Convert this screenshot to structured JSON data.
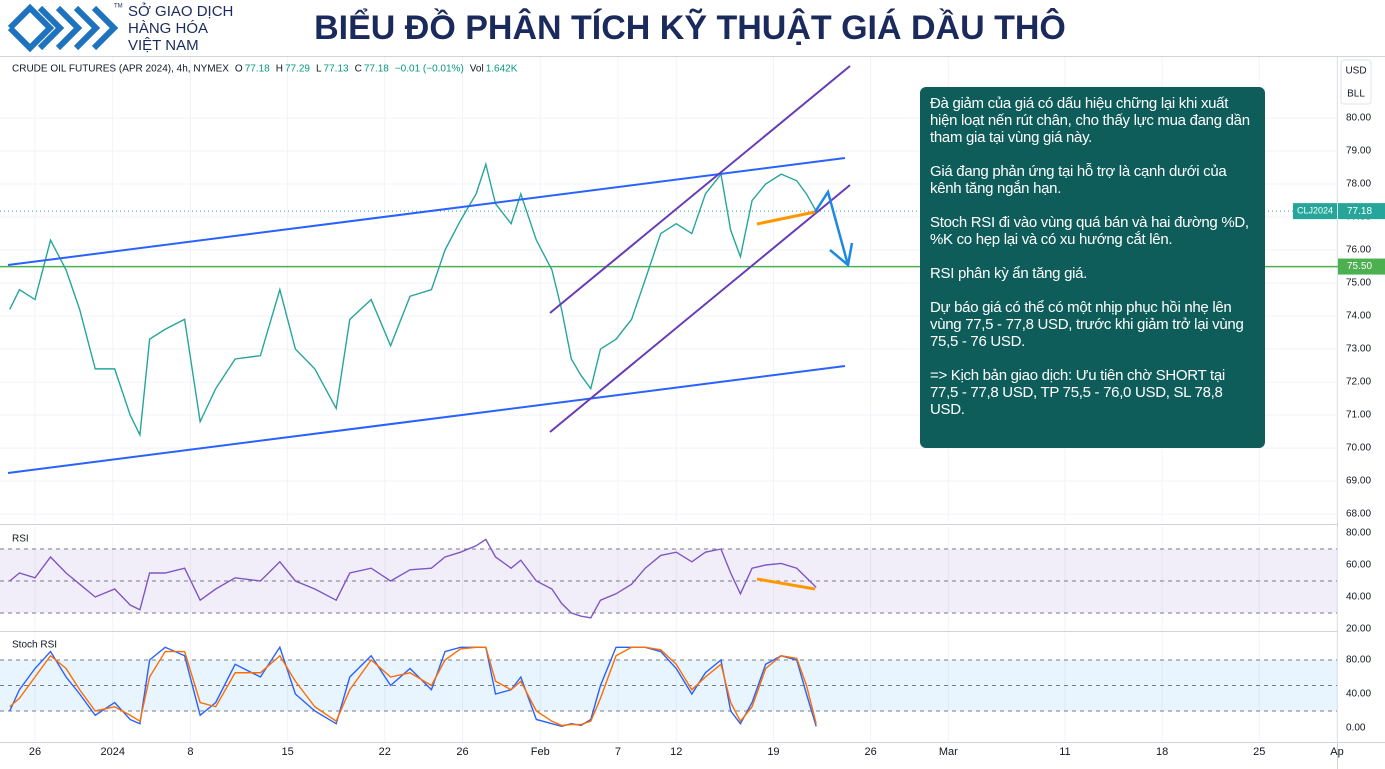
{
  "header": {
    "logo": {
      "lines": [
        "SỞ GIAO DỊCH",
        "HÀNG HÓA",
        "VIỆT NAM"
      ],
      "trademark": "TM"
    },
    "title": "BIỂU ĐỒ PHÂN TÍCH KỸ THUẬT GIÁ DẦU THÔ"
  },
  "chart_data": [
    {
      "type": "line",
      "title": "CRUDE OIL FUTURES (APR 2024), 4h, NYMEX",
      "quote": [
        {
          "name": "O",
          "value": 77.18
        },
        {
          "name": "H",
          "value": 77.29
        },
        {
          "name": "L",
          "value": 77.13
        },
        {
          "name": "C",
          "value": 77.18
        }
      ],
      "change": "−0.01 (−0.01%)",
      "volume": {
        "name": "Vol",
        "label": "1.642K"
      },
      "currency": "USD",
      "unit": "BLL",
      "x": [
        -1.3,
        -0.8,
        0.0,
        0.8,
        1.6,
        2.3,
        3.1,
        4.1,
        4.9,
        5.4,
        5.9,
        6.7,
        7.7,
        8.5,
        9.3,
        10.3,
        11.6,
        12.6,
        13.4,
        14.4,
        15.5,
        16.2,
        17.3,
        18.3,
        19.3,
        20.4,
        21.1,
        21.9,
        22.7,
        23.2,
        23.7,
        24.5,
        25.0,
        25.8,
        26.6,
        27.1,
        27.6,
        28.1,
        28.6,
        29.1,
        29.9,
        30.7,
        31.4,
        32.2,
        33.0,
        33.8,
        34.5,
        35.3,
        35.8,
        36.3,
        36.9,
        37.6,
        38.4,
        39.2,
        39.7,
        40.2
      ],
      "series": [
        {
          "name": "CLJ2024",
          "color": "#26a69a",
          "values": [
            74.2,
            74.8,
            74.5,
            76.3,
            75.4,
            74.2,
            72.4,
            72.4,
            71.0,
            70.4,
            73.3,
            73.6,
            73.9,
            70.8,
            71.8,
            72.7,
            72.8,
            74.8,
            73.0,
            72.4,
            71.2,
            73.9,
            74.5,
            73.1,
            74.6,
            74.8,
            76.0,
            76.9,
            77.7,
            78.6,
            77.4,
            76.8,
            77.7,
            76.3,
            75.4,
            74.2,
            72.7,
            72.2,
            71.8,
            73.0,
            73.3,
            73.9,
            75.1,
            76.5,
            76.8,
            76.5,
            77.7,
            78.3,
            76.6,
            75.8,
            77.5,
            78.0,
            78.3,
            78.1,
            77.7,
            77.18
          ]
        }
      ],
      "ylim": [
        67.76,
        81.85
      ],
      "yticks": [
        {
          "value": 68,
          "label": "68.00"
        },
        {
          "value": 69,
          "label": "69.00"
        },
        {
          "value": 70,
          "label": "70.00"
        },
        {
          "value": 71,
          "label": "71.00"
        },
        {
          "value": 72,
          "label": "72.00"
        },
        {
          "value": 73,
          "label": "73.00"
        },
        {
          "value": 74,
          "label": "74.00"
        },
        {
          "value": 75,
          "label": "75.00"
        },
        {
          "value": 76,
          "label": "76.00"
        },
        {
          "value": 77,
          "label": "77.00"
        },
        {
          "value": 78,
          "label": "78.00"
        },
        {
          "value": 79,
          "label": "79.00"
        },
        {
          "value": 80,
          "label": "80.00"
        }
      ],
      "grid": true,
      "hline": {
        "value": 75.5,
        "label": "75.50",
        "color": "#4caf50"
      }
    },
    {
      "type": "line",
      "title": "RSI",
      "x": [
        -1.3,
        -0.8,
        0.0,
        0.8,
        1.6,
        2.3,
        3.1,
        4.1,
        4.9,
        5.4,
        5.9,
        6.7,
        7.7,
        8.5,
        9.3,
        10.3,
        11.6,
        12.6,
        13.4,
        14.4,
        15.5,
        16.2,
        17.3,
        18.3,
        19.3,
        20.4,
        21.1,
        21.9,
        22.7,
        23.2,
        23.7,
        24.5,
        25.0,
        25.8,
        26.6,
        27.1,
        27.6,
        28.1,
        28.6,
        29.1,
        29.9,
        30.7,
        31.4,
        32.2,
        33.0,
        33.8,
        34.5,
        35.3,
        35.8,
        36.3,
        36.9,
        37.6,
        38.4,
        39.2,
        39.7,
        40.2
      ],
      "series": [
        {
          "color": "#7e57c2",
          "values": [
            50,
            55,
            52,
            65,
            55,
            48,
            40,
            45,
            35,
            32,
            55,
            55,
            58,
            38,
            45,
            52,
            50,
            62,
            50,
            45,
            38,
            55,
            58,
            50,
            57,
            58,
            65,
            68,
            72,
            76,
            65,
            58,
            63,
            50,
            45,
            36,
            30,
            28,
            27,
            38,
            42,
            48,
            58,
            66,
            68,
            62,
            68,
            70,
            55,
            42,
            58,
            60,
            61,
            58,
            52,
            46
          ]
        }
      ],
      "ylim": [
        18.75,
        83.75
      ],
      "yticks": [
        {
          "value": 20,
          "label": "20.00"
        },
        {
          "value": 40,
          "label": "40.00"
        },
        {
          "value": 60,
          "label": "60.00"
        },
        {
          "value": 80,
          "label": "80.00"
        }
      ],
      "bands": [
        70,
        50,
        30
      ],
      "band_color": "#7e57c2"
    },
    {
      "type": "line",
      "title": "Stoch RSI",
      "x": [
        -1.3,
        -0.8,
        0.0,
        0.8,
        1.6,
        2.3,
        3.1,
        4.1,
        4.9,
        5.4,
        5.9,
        6.7,
        7.7,
        8.5,
        9.3,
        10.3,
        11.6,
        12.6,
        13.4,
        14.4,
        15.5,
        16.2,
        17.3,
        18.3,
        19.3,
        20.4,
        21.1,
        21.9,
        22.7,
        23.2,
        23.7,
        24.5,
        25.0,
        25.8,
        26.6,
        27.1,
        27.6,
        28.1,
        28.6,
        29.1,
        29.9,
        30.7,
        31.4,
        32.2,
        33.0,
        33.8,
        34.5,
        35.3,
        35.8,
        36.3,
        36.9,
        37.6,
        38.4,
        39.2,
        39.7,
        40.2
      ],
      "series": [
        {
          "color": "#2962ff",
          "values": [
            20,
            45,
            70,
            90,
            60,
            40,
            15,
            30,
            10,
            5,
            80,
            95,
            85,
            15,
            30,
            75,
            60,
            95,
            40,
            20,
            5,
            60,
            85,
            50,
            70,
            45,
            90,
            95,
            95,
            95,
            40,
            45,
            60,
            10,
            5,
            2,
            5,
            3,
            10,
            50,
            95,
            95,
            95,
            90,
            70,
            40,
            65,
            80,
            20,
            5,
            30,
            75,
            85,
            80,
            40,
            2
          ]
        },
        {
          "color": "#ff6d00",
          "values": [
            25,
            35,
            60,
            85,
            70,
            45,
            20,
            25,
            15,
            8,
            60,
            90,
            90,
            30,
            25,
            65,
            65,
            85,
            55,
            25,
            8,
            45,
            80,
            60,
            65,
            50,
            80,
            93,
            95,
            95,
            55,
            45,
            55,
            20,
            8,
            3,
            4,
            4,
            8,
            35,
            85,
            95,
            95,
            92,
            75,
            45,
            60,
            75,
            30,
            8,
            25,
            70,
            85,
            82,
            50,
            5
          ]
        }
      ],
      "ylim": [
        -16.5,
        111.8
      ],
      "yticks": [
        {
          "value": 0,
          "label": "0.00"
        },
        {
          "value": 40,
          "label": "40.00"
        },
        {
          "value": 80,
          "label": "80.00"
        }
      ],
      "bands": [
        80,
        50,
        20
      ],
      "band_color": "#2196f3",
      "xlim": [
        -1.8,
        67
      ],
      "xticks": [
        {
          "value": 0,
          "label": "26"
        },
        {
          "value": 4,
          "label": "2024"
        },
        {
          "value": 8,
          "label": "8"
        },
        {
          "value": 13,
          "label": "15"
        },
        {
          "value": 18,
          "label": "22"
        },
        {
          "value": 22,
          "label": "26"
        },
        {
          "value": 26,
          "label": "Feb"
        },
        {
          "value": 30,
          "label": "7"
        },
        {
          "value": 33,
          "label": "12"
        },
        {
          "value": 38,
          "label": "19"
        },
        {
          "value": 43,
          "label": "26"
        },
        {
          "value": 47,
          "label": "Mar"
        },
        {
          "value": 53,
          "label": "11"
        },
        {
          "value": 58,
          "label": "18"
        },
        {
          "value": 63,
          "label": "25"
        },
        {
          "value": 67,
          "label": "Ap"
        }
      ]
    }
  ],
  "note": {
    "paragraphs": [
      "Đà giảm của giá có dấu hiệu chững lại khi xuất hiện loạt nến rút chân, cho thấy lực mua đang dần tham gia tại vùng giá này.",
      "Giá đang phản ứng tại hỗ trợ là cạnh dưới của kênh tăng ngắn hạn.",
      "Stoch RSI đi vào vùng quá bán và hai đường %D, %K co hẹp lại và có xu hướng cắt lên.",
      "RSI phân kỳ ẩn tăng giá.",
      "Dự báo giá có thể có một nhịp phục hồi nhẹ lên vùng 77,5 - 77,8 USD, trước khi giảm trở lại vùng 75,5 - 76 USD.",
      "=> Kịch bản giao dịch: Ưu tiên chờ SHORT tại 77,5 - 77,8 USD, TP 75,5 - 76,0 USD, SL 78,8 USD."
    ]
  }
}
